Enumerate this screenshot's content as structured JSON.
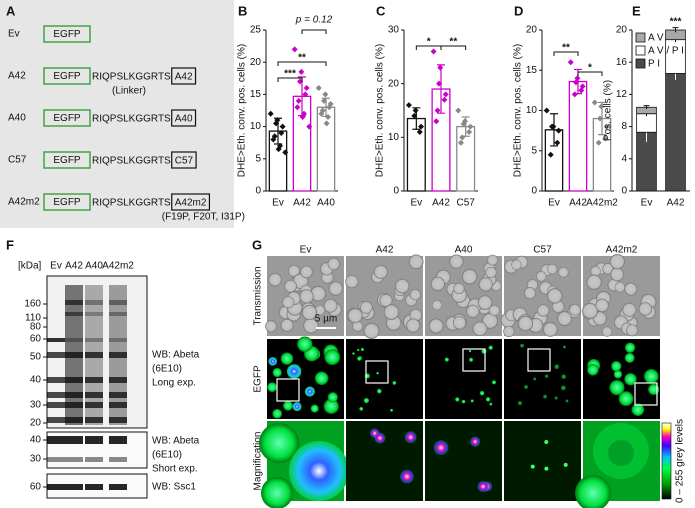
{
  "panel_a": {
    "label": "A",
    "constructs": [
      {
        "name": "Ev",
        "tag": "EGFP"
      },
      {
        "name": "A42",
        "tag": "EGFP",
        "linker": "RIQPSLKGGRTS",
        "peptide": "A42",
        "note": "(Linker)"
      },
      {
        "name": "A40",
        "tag": "EGFP",
        "linker": "RIQPSLKGGRTS",
        "peptide": "A40"
      },
      {
        "name": "C57",
        "tag": "EGFP",
        "linker": "RIQPSLKGGRTS",
        "peptide": "C57"
      },
      {
        "name": "A42m2",
        "tag": "EGFP",
        "linker": "RIQPSLKGGRTS",
        "peptide": "A42m2",
        "note": "(F19P, F20T, I31P)"
      }
    ]
  },
  "panel_b": {
    "label": "B",
    "type": "bar",
    "ylabel": "DHE>Eth. conv. pos. cells (%)",
    "categories": [
      "Ev",
      "A42",
      "A40"
    ],
    "colors": [
      "#111111",
      "#cc00cc",
      "#888888"
    ],
    "values": [
      9.3,
      14.7,
      13.0
    ],
    "errors": [
      2.0,
      3.0,
      1.4
    ],
    "points": [
      [
        12,
        11,
        10.5,
        10,
        9,
        8.5,
        8,
        7,
        6.5,
        6
      ],
      [
        22,
        18.5,
        17,
        16,
        15,
        14,
        13,
        12,
        11.5,
        10
      ],
      [
        16,
        15,
        14,
        13.5,
        13,
        12.5,
        12,
        11.5,
        10.5
      ]
    ],
    "ylim": [
      0,
      25
    ],
    "yticks": [
      0,
      5,
      10,
      15,
      20,
      25
    ],
    "significance": [
      "***",
      "**",
      "p = 0.12"
    ]
  },
  "panel_c": {
    "label": "C",
    "type": "bar",
    "ylabel": "DHE>Eth. conv. pos. cells (%)",
    "categories": [
      "Ev",
      "A42",
      "C57"
    ],
    "colors": [
      "#111111",
      "#cc00cc",
      "#888888"
    ],
    "values": [
      13.5,
      19.0,
      12.0
    ],
    "errors": [
      2.0,
      4.5,
      1.8
    ],
    "points": [
      [
        16,
        15,
        14,
        12,
        11
      ],
      [
        26,
        23,
        20,
        18,
        17,
        15,
        13
      ],
      [
        15,
        13,
        12.5,
        12,
        11,
        10,
        9
      ]
    ],
    "ylim": [
      0,
      30
    ],
    "yticks": [
      0,
      10,
      20,
      30
    ],
    "significance": [
      "*",
      "**"
    ]
  },
  "panel_d": {
    "label": "D",
    "type": "bar",
    "ylabel": "DHE>Eth. conv. pos. cells (%)",
    "categories": [
      "Ev",
      "A42",
      "A42m2"
    ],
    "colors": [
      "#111111",
      "#cc00cc",
      "#888888"
    ],
    "values": [
      7.6,
      13.6,
      9.0
    ],
    "errors": [
      2.0,
      1.5,
      2.0
    ],
    "points": [
      [
        10,
        8,
        8,
        7.5,
        6,
        4.5
      ],
      [
        16,
        14,
        13.5,
        13,
        12.5,
        12
      ],
      [
        11,
        10.5,
        9,
        8,
        6.5,
        6
      ]
    ],
    "ylim": [
      0,
      20
    ],
    "yticks": [
      0,
      5,
      10,
      15,
      20
    ],
    "significance": [
      "**",
      "*"
    ]
  },
  "panel_e": {
    "label": "E",
    "type": "stacked_bar",
    "ylabel": "Pos. cells (%)",
    "categories": [
      "Ev",
      "A42"
    ],
    "series": [
      {
        "name": "P I",
        "color": "#4a4a4a",
        "values": [
          7.3,
          14.6
        ],
        "errors": [
          1.2,
          0.8
        ]
      },
      {
        "name": "A V / P I",
        "color": "#ffffff",
        "values": [
          2.3,
          4.2
        ],
        "errors": [
          0.3,
          0.3
        ]
      },
      {
        "name": "A V",
        "color": "#a8a8a8",
        "values": [
          0.8,
          1.2
        ],
        "errors": [
          0.2,
          0.3
        ]
      }
    ],
    "ylim": [
      0,
      20
    ],
    "yticks": [
      0,
      4,
      8,
      12,
      16,
      20
    ],
    "significance": [
      "***"
    ]
  },
  "panel_f": {
    "label": "F",
    "unit": "[kDa]",
    "lanes": [
      "Ev",
      "A42",
      "A40",
      "A42m2"
    ],
    "blots": [
      {
        "markers": [
          "160",
          "110",
          "80",
          "60",
          "50",
          "40",
          "30",
          "20"
        ],
        "caption": [
          "WB: Abeta",
          "(6E10)",
          "Long exp."
        ]
      },
      {
        "markers": [
          "40",
          "30"
        ],
        "caption": [
          "WB: Abeta",
          "(6E10)",
          "Short exp."
        ]
      },
      {
        "markers": [
          "60"
        ],
        "caption": [
          "WB: Ssc1"
        ]
      }
    ]
  },
  "panel_g": {
    "label": "G",
    "columns": [
      "Ev",
      "A42",
      "A40",
      "C57",
      "A42m2"
    ],
    "rows": [
      "Transmission",
      "EGFP",
      "Magnification"
    ],
    "scale_bar": "5 µm",
    "colorbar": "0 – 255 grey levels"
  }
}
